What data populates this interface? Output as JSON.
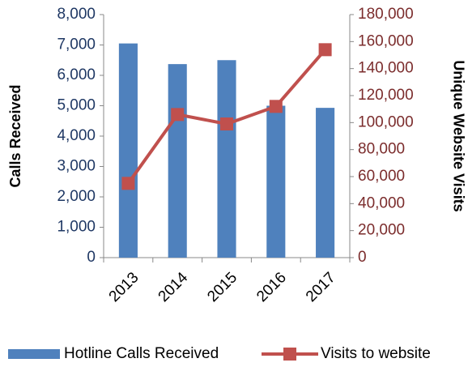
{
  "chart_data": {
    "type": "bar_line",
    "categories": [
      "2013",
      "2014",
      "2015",
      "2016",
      "2017"
    ],
    "y_label": "Calls Received",
    "y2_label": "Unique Website Visits",
    "ylim": [
      0,
      8000
    ],
    "yticks": [
      {
        "value": 0,
        "label": "0"
      },
      {
        "value": 1000,
        "label": "1,000"
      },
      {
        "value": 2000,
        "label": "2,000"
      },
      {
        "value": 3000,
        "label": "3,000"
      },
      {
        "value": 4000,
        "label": "4,000"
      },
      {
        "value": 5000,
        "label": "5,000"
      },
      {
        "value": 6000,
        "label": "6,000"
      },
      {
        "value": 7000,
        "label": "7,000"
      },
      {
        "value": 8000,
        "label": "8,000"
      }
    ],
    "y2lim": [
      0,
      180000
    ],
    "y2ticks": [
      {
        "value": 0,
        "label": "0"
      },
      {
        "value": 20000,
        "label": "20,000"
      },
      {
        "value": 40000,
        "label": "40,000"
      },
      {
        "value": 60000,
        "label": "60,000"
      },
      {
        "value": 80000,
        "label": "80,000"
      },
      {
        "value": 100000,
        "label": "100,000"
      },
      {
        "value": 120000,
        "label": "120,000"
      },
      {
        "value": 140000,
        "label": "140,000"
      },
      {
        "value": 160000,
        "label": "160,000"
      },
      {
        "value": 180000,
        "label": "180,000"
      }
    ],
    "series": [
      {
        "name": "Hotline Calls Received",
        "type": "bar",
        "color": "#4f81bd",
        "values": [
          7050,
          6370,
          6500,
          5000,
          4930
        ]
      },
      {
        "name": "Visits to website",
        "type": "line",
        "axis": "y2",
        "color": "#c0504d",
        "values": [
          55000,
          106000,
          99000,
          112000,
          154000
        ]
      }
    ]
  }
}
